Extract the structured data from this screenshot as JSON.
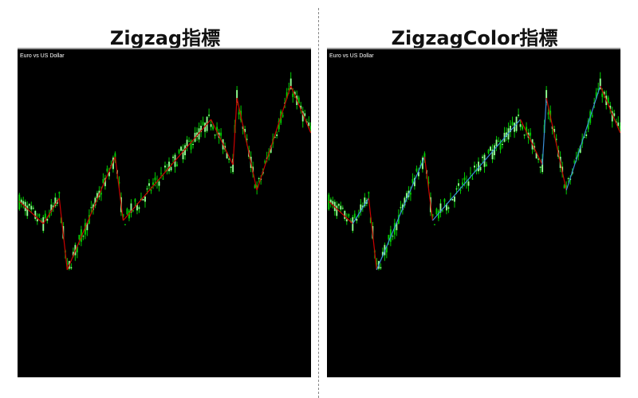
{
  "left": {
    "title": "Zigzag指標",
    "symbol": "Euro vs US Dollar"
  },
  "right": {
    "title": "ZigzagColor指標",
    "symbol": "Euro vs US Dollar"
  },
  "colors": {
    "background": "#000000",
    "bull_candle": "#00cc00",
    "bear_candle": "#90ff90",
    "zigzag": "#cc0000",
    "zigzag_up": "#3a8fd8",
    "zigzag_down": "#cc0000"
  },
  "chart_data": {
    "type": "candlestick-with-zigzag",
    "xlabel": "",
    "ylabel": "",
    "zigzag_vertices": {
      "bar": [
        0,
        12,
        20,
        24,
        48,
        52,
        96,
        107,
        109,
        119,
        136,
        146
      ],
      "price": [
        219,
        191,
        223,
        133,
        275,
        195,
        322,
        265,
        349,
        233,
        364,
        305
      ]
    },
    "bars": 147,
    "grid": false
  }
}
